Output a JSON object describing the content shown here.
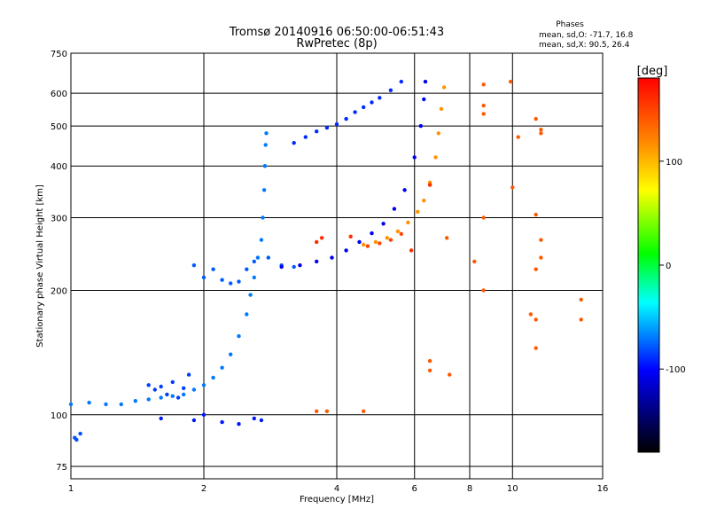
{
  "chart_data": {
    "type": "scatter",
    "title": "Tromsø 20140916 06:50:00-06:51:43",
    "subtitle": "RwPretec (8p)",
    "phases": {
      "heading": "Phases",
      "line1": "mean, sd,O: -71.7, 16.8",
      "line2": "mean, sd,X:  90.5, 26.4"
    },
    "xlabel": "Frequency [MHz]",
    "ylabel": "Stationary phase Virtual Height [km]",
    "xscale": "log",
    "yscale": "log",
    "xlim": [
      1,
      16
    ],
    "ylim": [
      70,
      750
    ],
    "xticks": [
      {
        "value": 1,
        "label": "1"
      },
      {
        "value": 2,
        "label": "2"
      },
      {
        "value": 4,
        "label": "4"
      },
      {
        "value": 6,
        "label": "6"
      },
      {
        "value": 8,
        "label": "8"
      },
      {
        "value": 10,
        "label": "10"
      },
      {
        "value": 16,
        "label": "16"
      }
    ],
    "yticks": [
      {
        "value": 75,
        "label": "75"
      },
      {
        "value": 100,
        "label": "100"
      },
      {
        "value": 200,
        "label": "200"
      },
      {
        "value": 300,
        "label": "300"
      },
      {
        "value": 400,
        "label": "400"
      },
      {
        "value": 500,
        "label": "500"
      },
      {
        "value": 600,
        "label": "600"
      },
      {
        "value": 750,
        "label": "750"
      }
    ],
    "colorbar": {
      "label": "[deg]",
      "range": [
        -180,
        180
      ],
      "ticks": [
        {
          "value": 100,
          "label": "100"
        },
        {
          "value": 0,
          "label": "0"
        },
        {
          "value": -100,
          "label": "-100"
        }
      ]
    },
    "grid": true,
    "series": [
      {
        "values": [
          [
            1.02,
            88
          ],
          [
            1.05,
            90
          ],
          [
            1.03,
            87
          ]
        ],
        "phase": -80
      },
      {
        "values": [
          [
            1.0,
            106
          ],
          [
            1.1,
            107
          ],
          [
            1.2,
            106
          ],
          [
            1.3,
            106
          ],
          [
            1.4,
            108
          ],
          [
            1.5,
            109
          ],
          [
            1.6,
            110
          ],
          [
            1.7,
            111
          ],
          [
            1.8,
            112
          ],
          [
            1.9,
            115
          ],
          [
            2.0,
            118
          ],
          [
            2.1,
            123
          ],
          [
            2.2,
            130
          ],
          [
            2.3,
            140
          ],
          [
            2.4,
            155
          ],
          [
            2.5,
            175
          ],
          [
            2.55,
            195
          ],
          [
            2.6,
            215
          ],
          [
            2.65,
            240
          ],
          [
            2.7,
            265
          ],
          [
            2.72,
            300
          ],
          [
            2.74,
            350
          ],
          [
            2.75,
            400
          ],
          [
            2.76,
            450
          ],
          [
            2.77,
            480
          ]
        ],
        "phase": -70
      },
      {
        "values": [
          [
            1.5,
            118
          ],
          [
            1.55,
            115
          ],
          [
            1.6,
            117
          ],
          [
            1.65,
            112
          ],
          [
            1.7,
            120
          ],
          [
            1.75,
            110
          ],
          [
            1.8,
            116
          ],
          [
            1.85,
            125
          ]
        ],
        "phase": -85
      },
      {
        "values": [
          [
            1.9,
            230
          ],
          [
            2.0,
            215
          ],
          [
            2.1,
            225
          ],
          [
            2.2,
            212
          ],
          [
            2.3,
            208
          ],
          [
            2.4,
            210
          ],
          [
            2.5,
            225
          ],
          [
            2.6,
            235
          ],
          [
            2.8,
            240
          ],
          [
            3.0,
            230
          ],
          [
            3.2,
            228
          ]
        ],
        "phase": -78
      },
      {
        "values": [
          [
            1.6,
            98
          ],
          [
            1.9,
            97
          ],
          [
            2.0,
            100
          ],
          [
            2.2,
            96
          ],
          [
            2.4,
            95
          ],
          [
            2.6,
            98
          ],
          [
            2.7,
            97
          ]
        ],
        "phase": -95
      },
      {
        "values": [
          [
            3.0,
            228
          ],
          [
            3.3,
            230
          ],
          [
            3.6,
            235
          ],
          [
            3.9,
            240
          ],
          [
            4.2,
            250
          ],
          [
            4.5,
            262
          ],
          [
            4.8,
            275
          ],
          [
            5.1,
            290
          ],
          [
            5.4,
            315
          ],
          [
            5.7,
            350
          ],
          [
            6.0,
            420
          ],
          [
            6.2,
            500
          ],
          [
            6.3,
            580
          ],
          [
            6.35,
            640
          ]
        ],
        "phase": -105
      },
      {
        "values": [
          [
            3.2,
            455
          ],
          [
            3.4,
            470
          ],
          [
            3.6,
            485
          ],
          [
            3.8,
            495
          ],
          [
            4.0,
            505
          ],
          [
            4.2,
            520
          ],
          [
            4.4,
            540
          ],
          [
            4.6,
            555
          ],
          [
            4.8,
            570
          ],
          [
            5.0,
            585
          ],
          [
            5.3,
            610
          ],
          [
            5.6,
            640
          ]
        ],
        "phase": -90
      },
      {
        "values": [
          [
            4.6,
            258
          ],
          [
            4.9,
            262
          ],
          [
            5.2,
            268
          ],
          [
            5.5,
            278
          ],
          [
            5.8,
            292
          ],
          [
            6.1,
            310
          ],
          [
            6.3,
            330
          ],
          [
            6.5,
            365
          ],
          [
            6.7,
            420
          ],
          [
            6.8,
            480
          ],
          [
            6.9,
            550
          ],
          [
            7.0,
            620
          ]
        ],
        "phase": 115
      },
      {
        "values": [
          [
            4.7,
            256
          ],
          [
            5.0,
            260
          ],
          [
            5.3,
            265
          ],
          [
            5.6,
            274
          ]
        ],
        "phase": 150
      },
      {
        "values": [
          [
            3.6,
            262
          ],
          [
            3.7,
            268
          ],
          [
            4.3,
            270
          ],
          [
            5.9,
            250
          ],
          [
            6.5,
            360
          ]
        ],
        "phase": 160
      },
      {
        "values": [
          [
            8.6,
            630
          ],
          [
            8.6,
            560
          ],
          [
            8.6,
            535
          ],
          [
            9.9,
            640
          ],
          [
            10.3,
            470
          ],
          [
            11.3,
            520
          ],
          [
            11.6,
            490
          ],
          [
            11.6,
            480
          ],
          [
            11.3,
            305
          ],
          [
            11.6,
            265
          ],
          [
            11.6,
            240
          ],
          [
            11.3,
            225
          ],
          [
            11.0,
            175
          ],
          [
            11.3,
            170
          ],
          [
            11.3,
            145
          ],
          [
            14.3,
            190
          ],
          [
            14.3,
            170
          ],
          [
            10.0,
            355
          ],
          [
            8.2,
            235
          ],
          [
            8.6,
            300
          ],
          [
            8.6,
            200
          ],
          [
            7.1,
            268
          ],
          [
            6.5,
            135
          ],
          [
            6.5,
            128
          ],
          [
            7.2,
            125
          ],
          [
            3.6,
            102
          ],
          [
            3.8,
            102
          ],
          [
            4.6,
            102
          ]
        ],
        "phase": 140
      }
    ]
  }
}
